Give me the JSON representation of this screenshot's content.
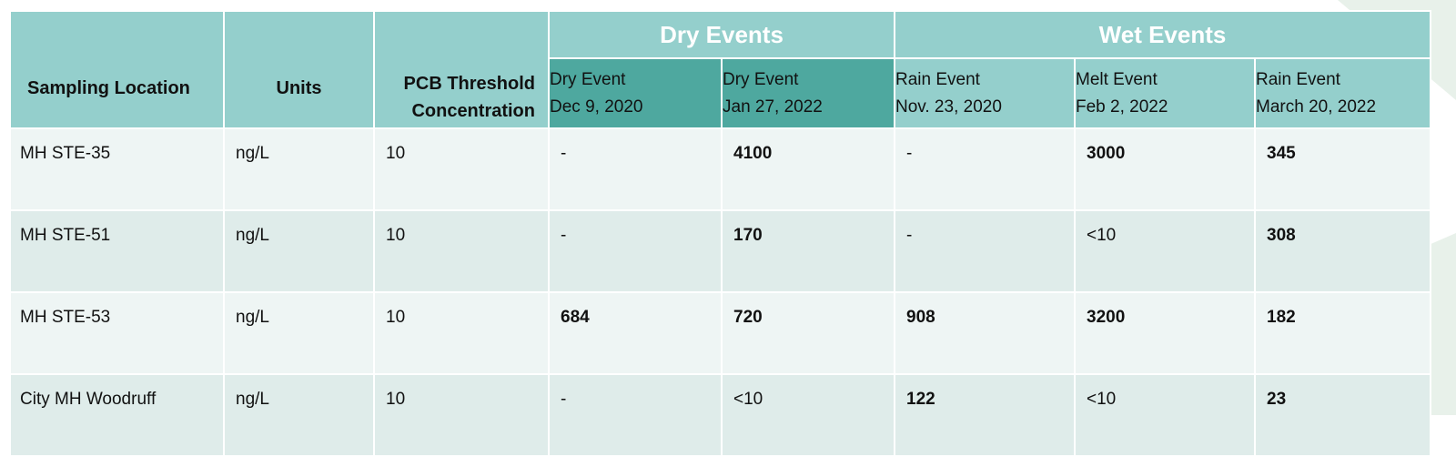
{
  "table": {
    "headers": {
      "sampling_location": "Sampling Location",
      "units": "Units",
      "threshold_line1": "PCB Threshold",
      "threshold_line2": "Concentration",
      "dry_group": "Dry Events",
      "wet_group": "Wet Events"
    },
    "events": [
      {
        "type": "Dry Event",
        "date": "Dec 9, 2020"
      },
      {
        "type": "Dry Event",
        "date": "Jan 27, 2022"
      },
      {
        "type": "Rain Event",
        "date": "Nov. 23, 2020"
      },
      {
        "type": "Melt Event",
        "date": "Feb 2, 2022"
      },
      {
        "type": "Rain Event",
        "date": "March 20, 2022"
      }
    ],
    "rows": [
      {
        "location": "MH STE-35",
        "units": "ng/L",
        "threshold": "10",
        "values": [
          "-",
          "4100",
          "-",
          "3000",
          "345"
        ]
      },
      {
        "location": "MH STE-51",
        "units": "ng/L",
        "threshold": "10",
        "values": [
          "-",
          "170",
          "-",
          "<10",
          "308"
        ]
      },
      {
        "location": "MH STE-53",
        "units": "ng/L",
        "threshold": "10",
        "values": [
          "684",
          "720",
          "908",
          "3200",
          "182"
        ]
      },
      {
        "location": "City MH Woodruff",
        "units": "ng/L",
        "threshold": "10",
        "values": [
          "-",
          "<10",
          "122",
          "<10",
          "23"
        ]
      }
    ]
  },
  "colors": {
    "header": "#94cfcc",
    "dry_event_header": "#4ea89f",
    "row_odd": "#eef5f4",
    "row_even": "#dfecea"
  }
}
